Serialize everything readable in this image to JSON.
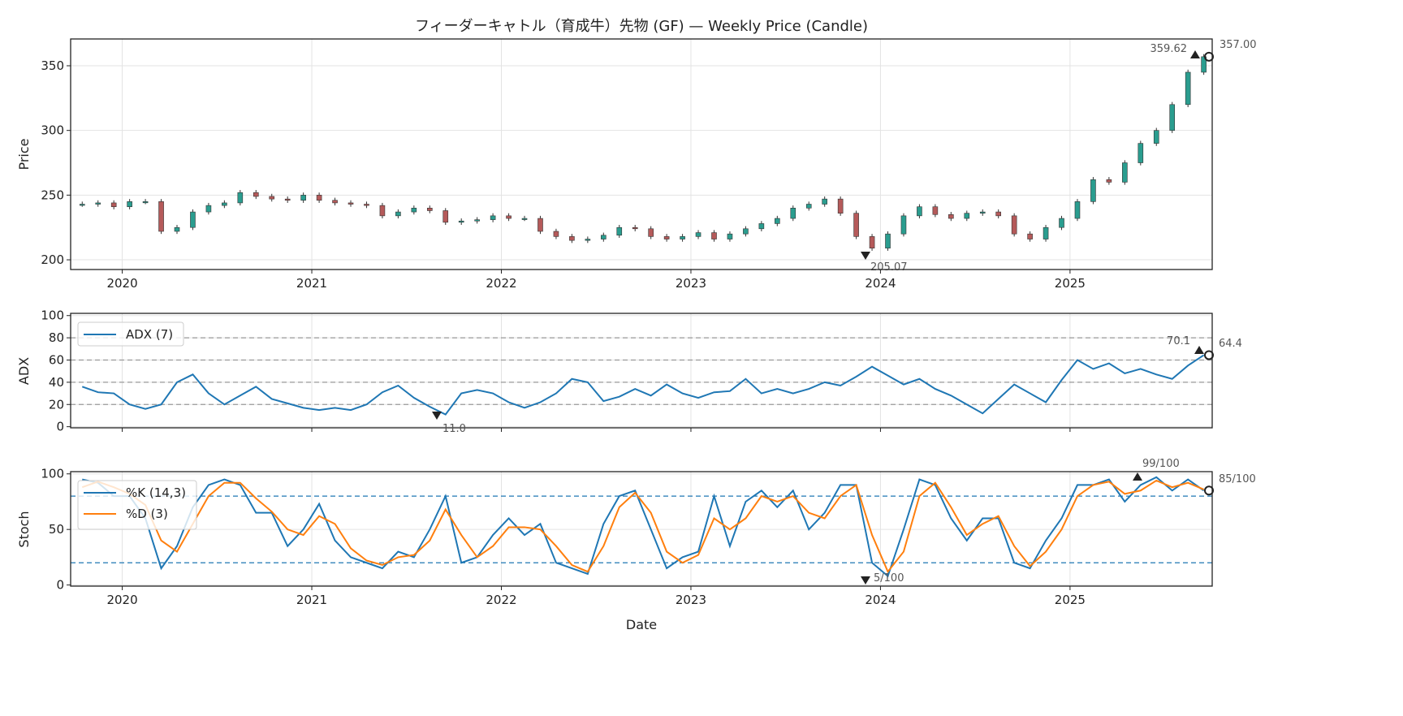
{
  "chart_data": [
    {
      "type": "candlestick",
      "title": "フィーダーキャトル（育成牛）先物 (GF) — Weekly Price (Candle)",
      "xlabel": "",
      "ylabel": "Price",
      "ylim": [
        192.5,
        370.7
      ],
      "xlim": [
        "2019-09-23",
        "2025-10-01"
      ],
      "grid": true,
      "yticks": [
        200,
        250,
        300,
        350
      ],
      "xticks": [
        "2020",
        "2021",
        "2022",
        "2023",
        "2024",
        "2025"
      ],
      "colors": {
        "up": "#2a9d8f",
        "down": "#b55a5a",
        "wick": "#333333"
      },
      "dates": [
        "2019-10",
        "2019-11",
        "2019-12",
        "2020-01",
        "2020-02",
        "2020-03",
        "2020-04",
        "2020-05",
        "2020-06",
        "2020-07",
        "2020-08",
        "2020-09",
        "2020-10",
        "2020-11",
        "2020-12",
        "2021-01",
        "2021-02",
        "2021-03",
        "2021-04",
        "2021-05",
        "2021-06",
        "2021-07",
        "2021-08",
        "2021-09",
        "2021-10",
        "2021-11",
        "2021-12",
        "2022-01",
        "2022-02",
        "2022-03",
        "2022-04",
        "2022-05",
        "2022-06",
        "2022-07",
        "2022-08",
        "2022-09",
        "2022-10",
        "2022-11",
        "2022-12",
        "2023-01",
        "2023-02",
        "2023-03",
        "2023-04",
        "2023-05",
        "2023-06",
        "2023-07",
        "2023-08",
        "2023-09",
        "2023-10",
        "2023-11",
        "2023-12",
        "2024-01",
        "2024-02",
        "2024-03",
        "2024-04",
        "2024-05",
        "2024-06",
        "2024-07",
        "2024-08",
        "2024-09",
        "2024-10",
        "2024-11",
        "2024-12",
        "2025-01",
        "2025-02",
        "2025-03",
        "2025-04",
        "2025-05",
        "2025-06",
        "2025-07",
        "2025-08",
        "2025-09"
      ],
      "close": [
        243,
        244,
        241,
        245,
        245,
        222,
        225,
        237,
        242,
        244,
        252,
        249,
        247,
        246,
        250,
        246,
        244,
        243,
        242,
        234,
        237,
        240,
        238,
        229,
        230,
        231,
        234,
        232,
        232,
        222,
        218,
        215,
        216,
        219,
        225,
        224,
        218,
        216,
        218,
        221,
        216,
        220,
        224,
        228,
        232,
        240,
        243,
        247,
        236,
        218,
        209,
        220,
        234,
        241,
        235,
        232,
        236,
        237,
        234,
        220,
        216,
        225,
        232,
        245,
        262,
        260,
        275,
        290,
        300,
        320,
        345,
        357
      ],
      "annotations": {
        "max": "359.62",
        "min": "205.07",
        "last": "357.00"
      }
    },
    {
      "type": "line",
      "ylabel": "ADX",
      "ylim": [
        -1,
        102
      ],
      "yticks": [
        0,
        20,
        40,
        60,
        80,
        100
      ],
      "reference_lines": [
        20,
        40,
        60,
        80
      ],
      "legend": "upper-left",
      "series": [
        {
          "name": "ADX (7)",
          "color": "#1f77b4",
          "values": [
            36,
            31,
            30,
            20,
            16,
            20,
            40,
            47,
            30,
            20,
            28,
            36,
            25,
            21,
            17,
            15,
            17,
            15,
            20,
            31,
            37,
            26,
            18,
            11,
            30,
            33,
            30,
            22,
            17,
            22,
            30,
            43,
            40,
            23,
            27,
            34,
            28,
            38,
            30,
            26,
            31,
            32,
            43,
            30,
            34,
            30,
            34,
            40,
            37,
            45,
            54,
            46,
            38,
            43,
            34,
            28,
            20,
            12,
            25,
            38,
            30,
            22,
            42,
            60,
            52,
            57,
            48,
            52,
            47,
            43,
            55,
            64.4
          ]
        }
      ],
      "annotations": {
        "max": "70.1",
        "min": "11.0",
        "last": "64.4"
      }
    },
    {
      "type": "line",
      "xlabel": "Date",
      "ylabel": "Stoch",
      "ylim": [
        -1,
        102
      ],
      "yticks": [
        0,
        50,
        100
      ],
      "reference_lines": [
        20,
        80
      ],
      "legend": "upper-left",
      "series": [
        {
          "name": "%K (14,3)",
          "color": "#1f77b4",
          "values": [
            95,
            92,
            80,
            80,
            60,
            15,
            35,
            70,
            90,
            95,
            90,
            65,
            65,
            35,
            50,
            73,
            40,
            25,
            20,
            15,
            30,
            25,
            50,
            80,
            20,
            25,
            45,
            60,
            45,
            55,
            20,
            15,
            10,
            55,
            80,
            85,
            50,
            15,
            25,
            30,
            80,
            35,
            75,
            85,
            70,
            85,
            50,
            65,
            90,
            90,
            20,
            8,
            50,
            95,
            90,
            60,
            40,
            60,
            60,
            20,
            15,
            40,
            60,
            90,
            90,
            95,
            75,
            90,
            97,
            85,
            95,
            85
          ]
        },
        {
          "name": "%D (3)",
          "color": "#ff7f0e",
          "values": [
            88,
            93,
            88,
            82,
            72,
            40,
            30,
            55,
            80,
            92,
            92,
            78,
            66,
            50,
            45,
            62,
            55,
            33,
            22,
            18,
            25,
            27,
            40,
            68,
            45,
            25,
            35,
            52,
            52,
            50,
            35,
            18,
            12,
            35,
            70,
            83,
            65,
            30,
            20,
            27,
            60,
            50,
            60,
            80,
            75,
            80,
            65,
            60,
            80,
            90,
            45,
            12,
            30,
            80,
            92,
            70,
            45,
            55,
            62,
            35,
            17,
            30,
            50,
            80,
            90,
            93,
            82,
            85,
            94,
            88,
            92,
            86
          ]
        }
      ],
      "annotations": {
        "max": "99/100",
        "min": "5/100",
        "last": "85/100"
      }
    }
  ]
}
